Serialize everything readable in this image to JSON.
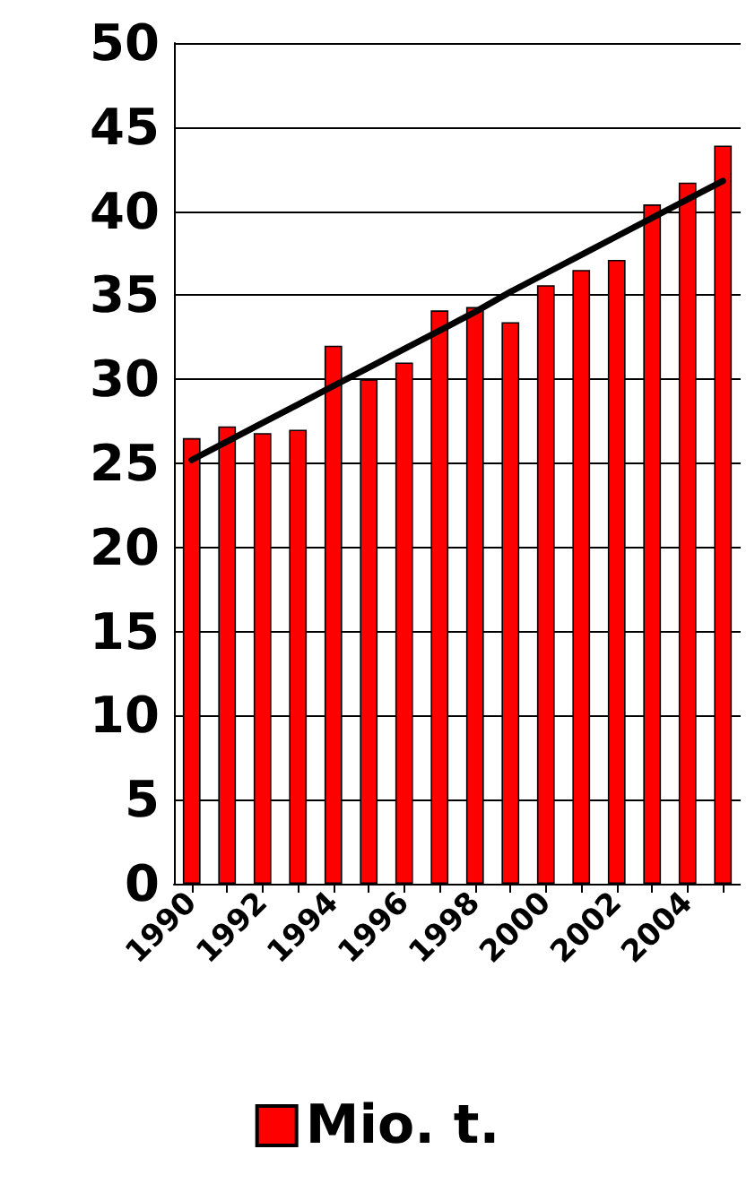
{
  "chart_data": {
    "type": "bar",
    "categories": [
      "1990",
      null,
      "1992",
      null,
      "1994",
      null,
      "1996",
      null,
      "1998",
      null,
      "2000",
      null,
      "2002",
      null,
      "2004",
      null
    ],
    "series": [
      {
        "name": "Mio. t.",
        "color": "#ff0000",
        "values": [
          26.5,
          27.2,
          26.8,
          27.0,
          32.0,
          30.0,
          31.0,
          34.1,
          34.3,
          33.4,
          35.6,
          36.5,
          37.1,
          40.4,
          41.7,
          43.9
        ]
      },
      {
        "type": "line",
        "color": "#000000",
        "values": [
          25.2,
          26.3,
          27.4,
          28.5,
          29.6,
          30.7,
          31.8,
          32.9,
          34.0,
          35.2,
          36.3,
          37.4,
          38.5,
          39.6,
          40.7,
          41.8
        ]
      }
    ],
    "ylim": [
      0,
      50
    ],
    "yticks": [
      0,
      5,
      10,
      15,
      20,
      25,
      30,
      35,
      40,
      45,
      50
    ],
    "grid": "y",
    "legend": "bottom",
    "line_style": "solid",
    "marker": "none"
  }
}
